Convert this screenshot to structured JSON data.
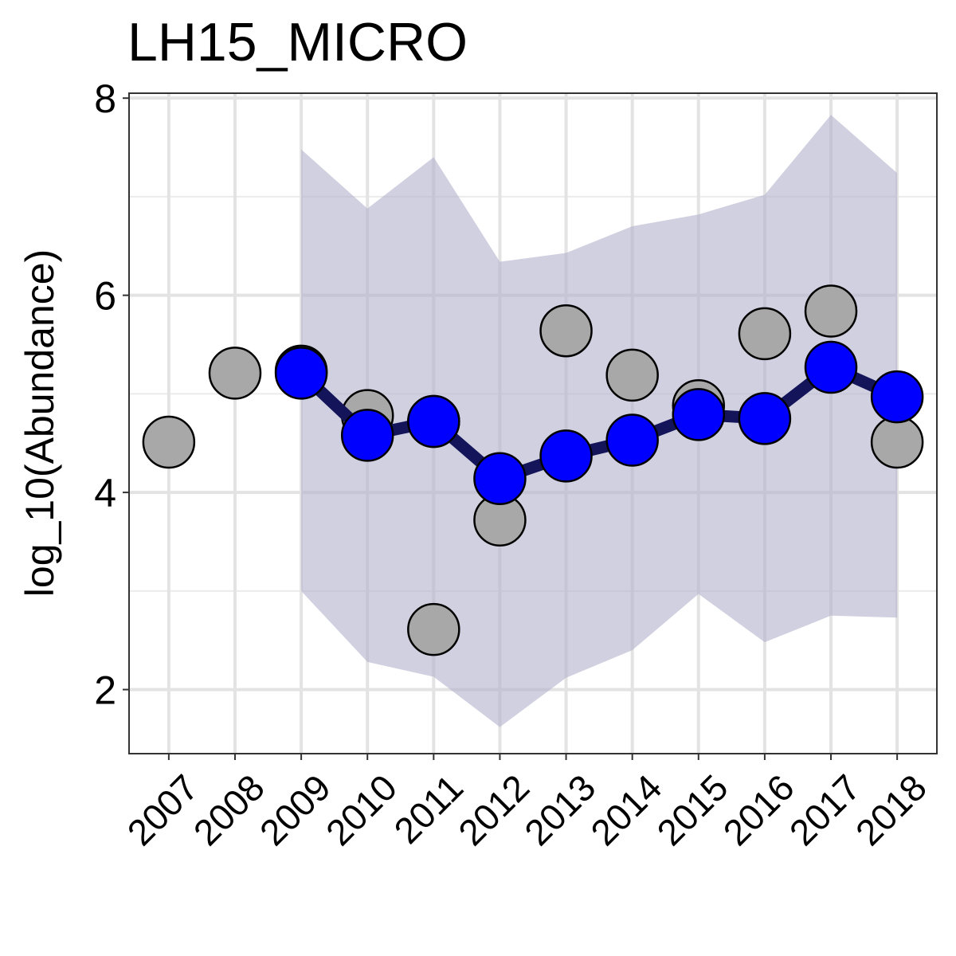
{
  "chart_data": {
    "type": "line",
    "title": "LH15_MICRO",
    "xlabel": "",
    "ylabel": "log_10(Abundance)",
    "categories": [
      "2007",
      "2008",
      "2009",
      "2010",
      "2011",
      "2012",
      "2013",
      "2014",
      "2015",
      "2016",
      "2017",
      "2018"
    ],
    "xlim": [
      2006.4,
      2018.6
    ],
    "ylim": [
      1.35,
      8.05
    ],
    "yticks": [
      2,
      4,
      6,
      8
    ],
    "grid": true,
    "legend": "none",
    "observed": {
      "x": [
        2007,
        2008,
        2009,
        2010,
        2011,
        2011,
        2012,
        2013,
        2014,
        2015,
        2016,
        2017,
        2018
      ],
      "values": [
        4.51,
        5.21,
        5.23,
        4.78,
        4.72,
        2.61,
        3.72,
        5.64,
        5.19,
        4.88,
        5.61,
        5.84,
        4.51
      ],
      "color": "#a8a8a8"
    },
    "estimate": {
      "x": [
        2009,
        2010,
        2011,
        2012,
        2013,
        2014,
        2015,
        2016,
        2017,
        2018
      ],
      "values": [
        5.21,
        4.58,
        4.72,
        4.14,
        4.37,
        4.53,
        4.79,
        4.75,
        5.27,
        4.97
      ],
      "point_color": "#0000ff",
      "line_color": "#14145a"
    },
    "interval": {
      "x": [
        2009,
        2010,
        2011,
        2012,
        2013,
        2014,
        2015,
        2016,
        2017,
        2018
      ],
      "upper": [
        7.48,
        6.88,
        7.4,
        6.34,
        6.43,
        6.7,
        6.82,
        7.02,
        7.83,
        7.24
      ],
      "lower": [
        3.0,
        2.28,
        2.13,
        1.62,
        2.12,
        2.4,
        2.97,
        2.48,
        2.75,
        2.73
      ],
      "color": "#b0b0cc"
    }
  }
}
